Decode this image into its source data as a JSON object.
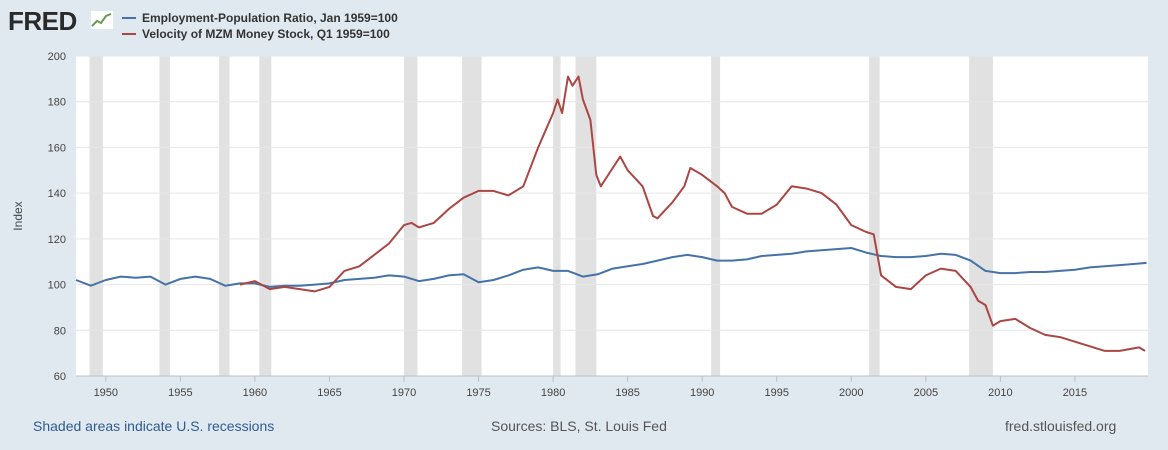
{
  "header": {
    "logo_text": "FRED",
    "logo_icon": "line-chart-icon",
    "legend": [
      {
        "label": "Employment-Population Ratio, Jan 1959=100",
        "color": "#4572a7"
      },
      {
        "label": "Velocity of MZM Money Stock, Q1 1959=100",
        "color": "#aa4643"
      }
    ]
  },
  "footer": {
    "recession_note": "Shaded areas indicate U.S. recessions",
    "sources": "Sources: BLS, St. Louis Fed",
    "site": "fred.stlouisfed.org"
  },
  "chart_data": {
    "type": "line",
    "ylabel": "Index",
    "xlabel": "",
    "xlim": [
      1948,
      2019.9
    ],
    "ylim": [
      60,
      200
    ],
    "yticks": [
      60,
      80,
      100,
      120,
      140,
      160,
      180,
      200
    ],
    "xticks": [
      1950,
      1955,
      1960,
      1965,
      1970,
      1975,
      1980,
      1985,
      1990,
      1995,
      2000,
      2005,
      2010,
      2015
    ],
    "grid": true,
    "legend_position": "top-left",
    "recessions": [
      [
        1948.9,
        1949.8
      ],
      [
        1953.6,
        1954.3
      ],
      [
        1957.6,
        1958.3
      ],
      [
        1960.3,
        1961.1
      ],
      [
        1970.0,
        1970.9
      ],
      [
        1973.9,
        1975.2
      ],
      [
        1980.0,
        1980.5
      ],
      [
        1981.5,
        1982.9
      ],
      [
        1990.6,
        1991.2
      ],
      [
        2001.2,
        2001.9
      ],
      [
        2007.9,
        2009.5
      ]
    ],
    "series": [
      {
        "name": "Employment-Population Ratio, Jan 1959=100",
        "color": "#4572a7",
        "x": [
          1948,
          1949,
          1950,
          1951,
          1952,
          1953,
          1954,
          1955,
          1956,
          1957,
          1958,
          1959,
          1960,
          1961,
          1962,
          1963,
          1964,
          1965,
          1966,
          1967,
          1968,
          1969,
          1970,
          1971,
          1972,
          1973,
          1974,
          1975,
          1976,
          1977,
          1978,
          1979,
          1980,
          1981,
          1982,
          1983,
          1984,
          1985,
          1986,
          1987,
          1988,
          1989,
          1990,
          1991,
          1992,
          1993,
          1994,
          1995,
          1996,
          1997,
          1998,
          1999,
          2000,
          2001,
          2002,
          2003,
          2004,
          2005,
          2006,
          2007,
          2008,
          2009,
          2010,
          2011,
          2012,
          2013,
          2014,
          2015,
          2016,
          2017,
          2018,
          2019.8
        ],
        "y": [
          102,
          99.5,
          102,
          103.5,
          103,
          103.5,
          100,
          102.5,
          103.5,
          102.5,
          99.5,
          100.5,
          100.5,
          99,
          99.5,
          99.5,
          100,
          100.5,
          102,
          102.5,
          103,
          104,
          103.5,
          101.5,
          102.5,
          104,
          104.5,
          101,
          102,
          104,
          106.5,
          107.5,
          106,
          106,
          103.5,
          104.5,
          107,
          108,
          109,
          110.5,
          112,
          113,
          112,
          110.5,
          110.5,
          111,
          112.5,
          113,
          113.5,
          114.5,
          115,
          115.5,
          116,
          114,
          112.5,
          112,
          112,
          112.5,
          113.5,
          113,
          110.5,
          106,
          105,
          105,
          105.5,
          105.5,
          106,
          106.5,
          107.5,
          108,
          108.5,
          109.5
        ]
      },
      {
        "name": "Velocity of MZM Money Stock, Q1 1959=100",
        "color": "#aa4643",
        "x": [
          1959,
          1960,
          1961,
          1962,
          1963,
          1964,
          1965,
          1966,
          1967,
          1968,
          1969,
          1970,
          1970.5,
          1971,
          1972,
          1973,
          1974,
          1975,
          1976,
          1977,
          1978,
          1979,
          1980,
          1980.3,
          1980.6,
          1981,
          1981.3,
          1981.7,
          1982,
          1982.5,
          1982.9,
          1983.2,
          1984,
          1984.5,
          1985,
          1986,
          1986.7,
          1987,
          1988,
          1988.8,
          1989.2,
          1990,
          1991,
          1991.5,
          1992,
          1993,
          1994,
          1995,
          1996,
          1997,
          1998,
          1999,
          2000,
          2001,
          2001.5,
          2002,
          2003,
          2004,
          2005,
          2006,
          2007,
          2008,
          2008.5,
          2009,
          2009.5,
          2010,
          2011,
          2012,
          2013,
          2014,
          2015,
          2016,
          2017,
          2018,
          2019.3,
          2019.7
        ],
        "y": [
          100,
          101.5,
          98,
          99,
          98,
          97,
          99,
          106,
          108,
          113,
          118,
          126,
          127,
          125,
          127,
          133,
          138,
          141,
          141,
          139,
          143,
          160,
          175,
          181,
          175,
          191,
          187,
          191,
          181,
          172,
          148,
          143,
          151,
          156,
          150,
          143,
          130,
          129,
          136,
          143,
          151,
          148,
          143,
          140,
          134,
          131,
          131,
          135,
          143,
          142,
          140,
          135,
          126,
          123,
          122,
          104,
          99,
          98,
          104,
          107,
          106,
          99,
          93,
          91,
          82,
          84,
          85,
          81,
          78,
          77,
          75,
          73,
          71,
          71,
          72.5,
          71
        ]
      }
    ]
  }
}
